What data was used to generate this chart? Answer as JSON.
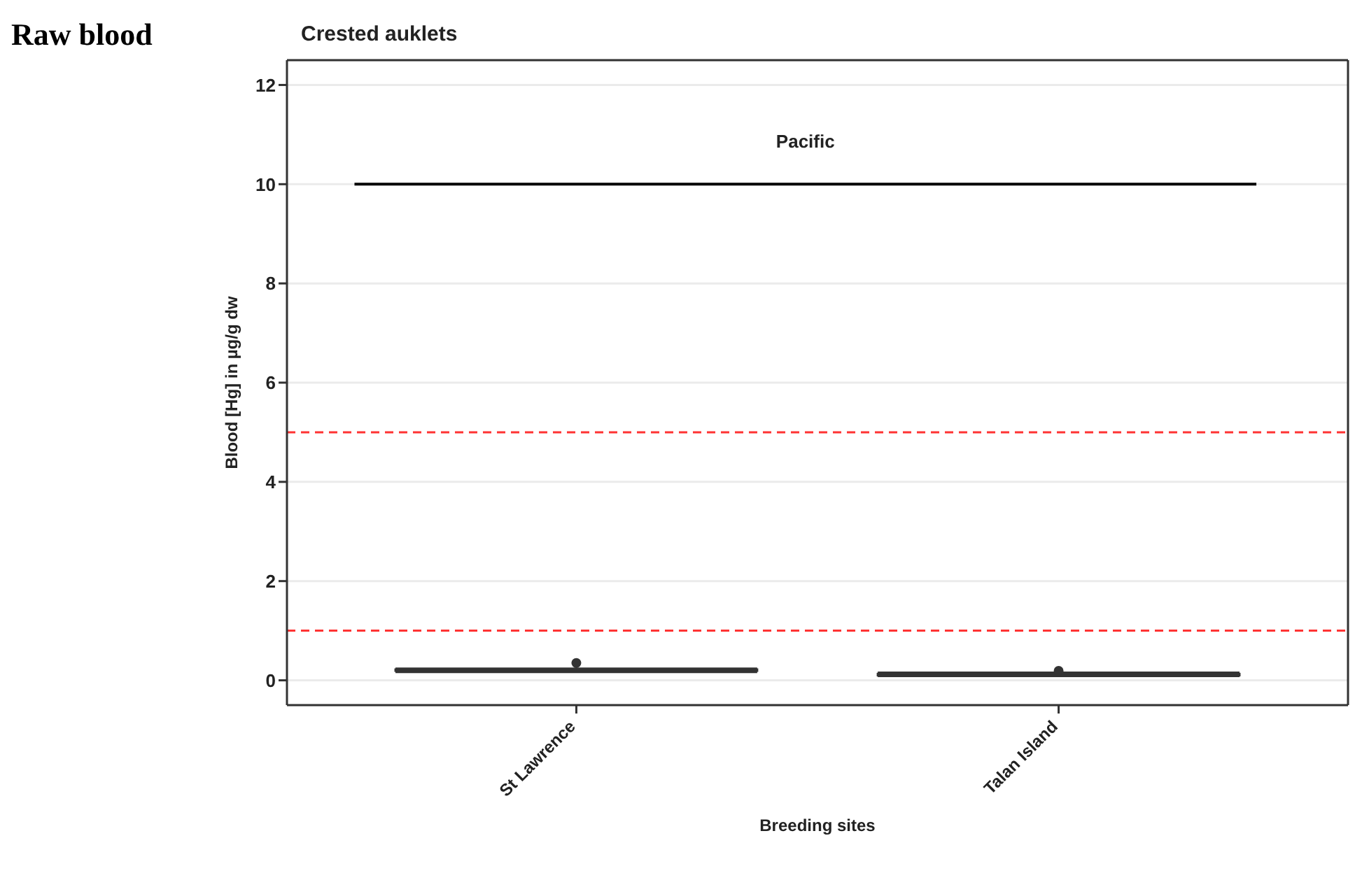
{
  "chart_data": {
    "type": "box",
    "title": "Raw blood",
    "subtitle": "Crested auklets",
    "xlabel": "Breeding sites",
    "ylabel": "Blood [Hg] in µg/g dw",
    "categories": [
      "St Lawrence",
      "Talan Island"
    ],
    "boxes": [
      {
        "low": 0.15,
        "q1": 0.19,
        "median": 0.2,
        "q3": 0.22,
        "high": 0.26,
        "outliers": [
          0.35
        ]
      },
      {
        "low": 0.08,
        "q1": 0.1,
        "median": 0.12,
        "q3": 0.13,
        "high": 0.16,
        "outliers": [
          0.19
        ]
      }
    ],
    "color": "#333333",
    "ylim": [
      -0.5,
      12.5
    ],
    "yticks": [
      0,
      2,
      4,
      6,
      8,
      10,
      12
    ],
    "grid": "y",
    "ref_lines": [
      {
        "axis": "y",
        "value": 10,
        "label": "Pacific",
        "color": "#000000",
        "line_style": "solid"
      },
      {
        "axis": "y",
        "value": 5,
        "label": null,
        "color": "#ff3333",
        "line_style": "dashed"
      },
      {
        "axis": "y",
        "value": 1,
        "label": null,
        "color": "#ff3333",
        "line_style": "dashed"
      }
    ]
  }
}
